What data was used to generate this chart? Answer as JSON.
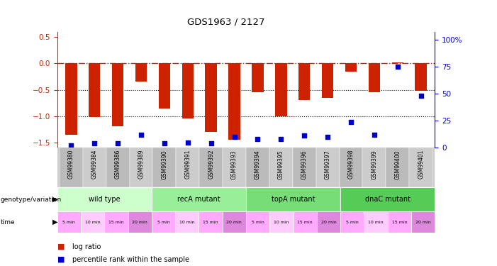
{
  "title": "GDS1963 / 2127",
  "samples": [
    "GSM99380",
    "GSM99384",
    "GSM99386",
    "GSM99389",
    "GSM99390",
    "GSM99391",
    "GSM99392",
    "GSM99393",
    "GSM99394",
    "GSM99395",
    "GSM99396",
    "GSM99397",
    "GSM99398",
    "GSM99399",
    "GSM99400",
    "GSM99401"
  ],
  "log_ratio": [
    -1.35,
    -1.02,
    -1.2,
    -0.35,
    -0.85,
    -1.05,
    -1.3,
    -1.45,
    -0.55,
    -1.0,
    -0.7,
    -0.65,
    -0.15,
    -0.55,
    0.02,
    -0.52
  ],
  "percentile": [
    2,
    4,
    4,
    12,
    4,
    5,
    4,
    10,
    8,
    8,
    11,
    10,
    24,
    12,
    75,
    48
  ],
  "genotype_groups": [
    {
      "label": "wild type",
      "start": 0,
      "end": 3,
      "color": "#ccffcc"
    },
    {
      "label": "recA mutant",
      "start": 4,
      "end": 7,
      "color": "#99ee99"
    },
    {
      "label": "topA mutant",
      "start": 8,
      "end": 11,
      "color": "#77dd77"
    },
    {
      "label": "dnaC mutant",
      "start": 12,
      "end": 15,
      "color": "#55cc55"
    }
  ],
  "time_labels": [
    "5 min",
    "10 min",
    "15 min",
    "20 min",
    "5 min",
    "10 min",
    "15 min",
    "20 min",
    "5 min",
    "10 min",
    "15 min",
    "20 min",
    "5 min",
    "10 min",
    "15 min",
    "20 min"
  ],
  "time_colors": [
    "#ffaaff",
    "#ffccff",
    "#ffaaff",
    "#dd88dd",
    "#ffaaff",
    "#ffccff",
    "#ffaaff",
    "#dd88dd",
    "#ffaaff",
    "#ffccff",
    "#ffaaff",
    "#dd88dd",
    "#ffaaff",
    "#ffccff",
    "#ffaaff",
    "#dd88dd"
  ],
  "bar_color": "#cc2200",
  "dot_color": "#0000cc",
  "dashed_line_color": "#cc2200",
  "left_ylim": [
    -1.6,
    0.6
  ],
  "right_ylim": [
    0,
    107
  ],
  "yticks_left": [
    -1.5,
    -1.0,
    -0.5,
    0.0,
    0.5
  ],
  "yticks_right": [
    0,
    25,
    50,
    75,
    100
  ],
  "background_color": "#ffffff",
  "legend_log_ratio_color": "#cc2200",
  "legend_pct_color": "#0000cc",
  "sample_bg_color": "#cccccc"
}
